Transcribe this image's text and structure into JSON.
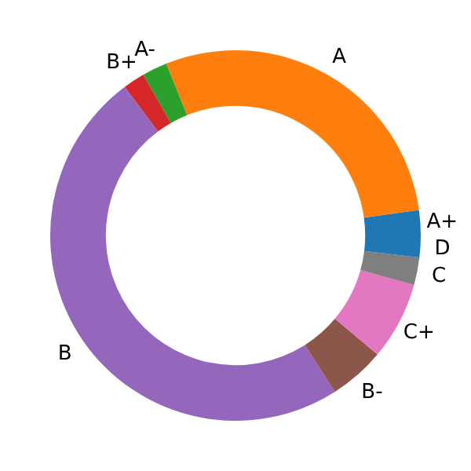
{
  "chart_data": {
    "type": "donut",
    "categories": [
      "A+",
      "A",
      "A-",
      "B+",
      "B",
      "B-",
      "C+",
      "C",
      "D"
    ],
    "values": [
      2.2,
      28.9,
      2.2,
      1.9,
      48.8,
      4.9,
      6.8,
      2.4,
      1.9
    ],
    "colors": [
      "#1f77b4",
      "#ff7f0e",
      "#2ca02c",
      "#d62728",
      "#9467bd",
      "#8c564b",
      "#e377c2",
      "#7f7f7f",
      "#1f77b4"
    ]
  }
}
